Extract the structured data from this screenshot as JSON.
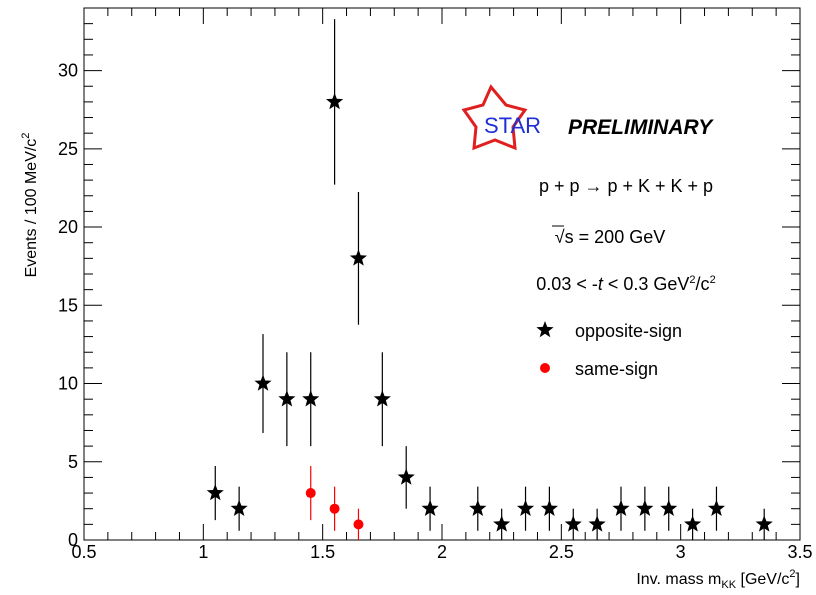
{
  "chart_data": {
    "type": "scatter",
    "title": "",
    "xlabel": "Inv. mass  m",
    "xlabel_sub": "KK",
    "xlabel_unit": " [GeV/c",
    "xlabel_unit_sup": "2",
    "xlabel_unit_end": "]",
    "ylabel": "Events / 100 MeV/c",
    "ylabel_sup": "2",
    "xlim": [
      0.5,
      3.5
    ],
    "ylim": [
      0,
      34
    ],
    "xticks": [
      0.5,
      1,
      1.5,
      2,
      2.5,
      3,
      3.5
    ],
    "xtick_labels": [
      "0.5",
      "1",
      "1.5",
      "2",
      "2.5",
      "3",
      "3.5"
    ],
    "yticks": [
      0,
      5,
      10,
      15,
      20,
      25,
      30
    ],
    "ytick_labels": [
      "0",
      "5",
      "10",
      "15",
      "20",
      "25",
      "30"
    ],
    "grid": false,
    "legend_position": "right",
    "series": [
      {
        "name": "opposite-sign",
        "color": "#000000",
        "marker": "star",
        "x": [
          1.05,
          1.15,
          1.25,
          1.35,
          1.45,
          1.55,
          1.65,
          1.75,
          1.85,
          1.95,
          2.15,
          2.25,
          2.35,
          2.45,
          2.55,
          2.65,
          2.75,
          2.85,
          2.95,
          3.05,
          3.15,
          3.35
        ],
        "y": [
          3,
          2,
          10,
          9,
          9,
          28,
          18,
          9,
          4,
          2,
          2,
          1,
          2,
          2,
          1,
          1,
          2,
          2,
          2,
          1,
          2,
          1
        ],
        "yerr": [
          1.73,
          1.41,
          3.16,
          3,
          3,
          5.29,
          4.24,
          3,
          2,
          1.41,
          1.41,
          1,
          1.41,
          1.41,
          1,
          1,
          1.41,
          1.41,
          1.41,
          1,
          1.41,
          1
        ]
      },
      {
        "name": "same-sign",
        "color": "#ff0000",
        "marker": "circle",
        "x": [
          1.45,
          1.55,
          1.65
        ],
        "y": [
          3,
          2,
          1
        ],
        "yerr": [
          1.73,
          1.41,
          1
        ]
      }
    ],
    "annotations": {
      "logo_text": "STAR",
      "preliminary": "PRELIMINARY",
      "reaction": "p + p → p + K + K + p",
      "energy_prefix": "√s",
      "energy_value": " = 200 GeV",
      "t_range_left": "0.03 < -",
      "t_var": "t",
      "t_range_right": " < 0.3 GeV",
      "t_unit_sup1": "2",
      "t_unit_mid": "/c",
      "t_unit_sup2": "2"
    }
  }
}
